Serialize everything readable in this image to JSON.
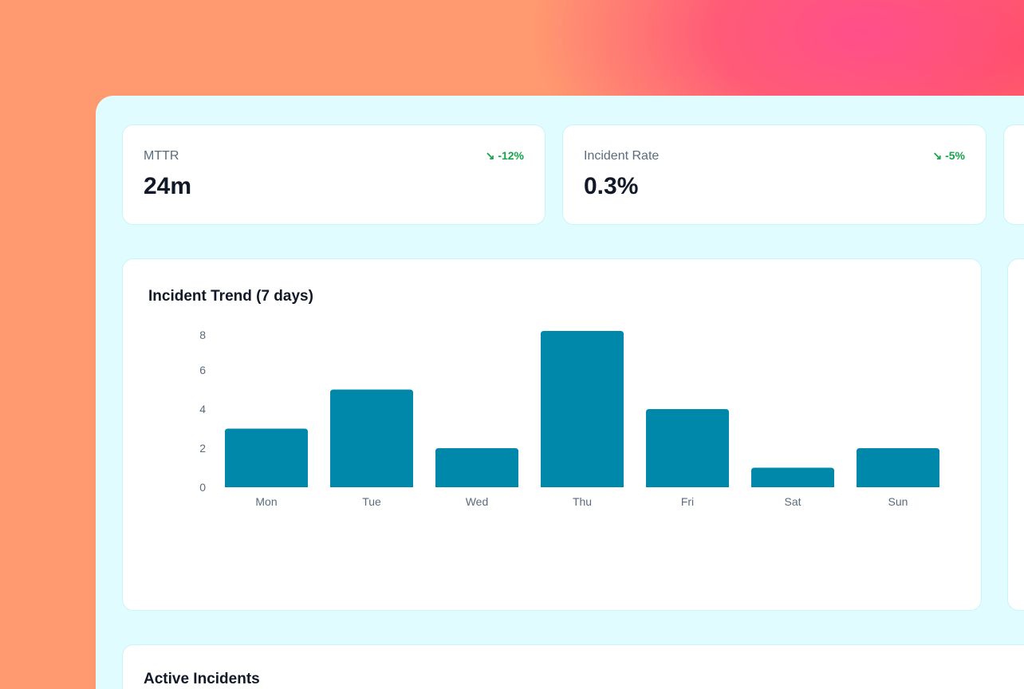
{
  "kpis": [
    {
      "label": "MTTR",
      "value": "24m",
      "delta": "-12%",
      "icon": "trend-down-icon"
    },
    {
      "label": "Incident Rate",
      "value": "0.3%",
      "delta": "-5%",
      "icon": "trend-down-icon"
    }
  ],
  "colors": {
    "bar": "#0088aa",
    "positive": "#16a34a",
    "panel": "#e0fcff"
  },
  "chart_data": {
    "type": "bar",
    "title": "Incident Trend (7 days)",
    "categories": [
      "Mon",
      "Tue",
      "Wed",
      "Thu",
      "Fri",
      "Sat",
      "Sun"
    ],
    "values": [
      3,
      5,
      2,
      8,
      4,
      1,
      2
    ],
    "yticks": [
      0,
      2,
      4,
      6,
      8
    ],
    "ylim": [
      0,
      8
    ],
    "grid": false,
    "xlabel": "",
    "ylabel": ""
  },
  "incidents": {
    "title": "Active Incidents"
  }
}
